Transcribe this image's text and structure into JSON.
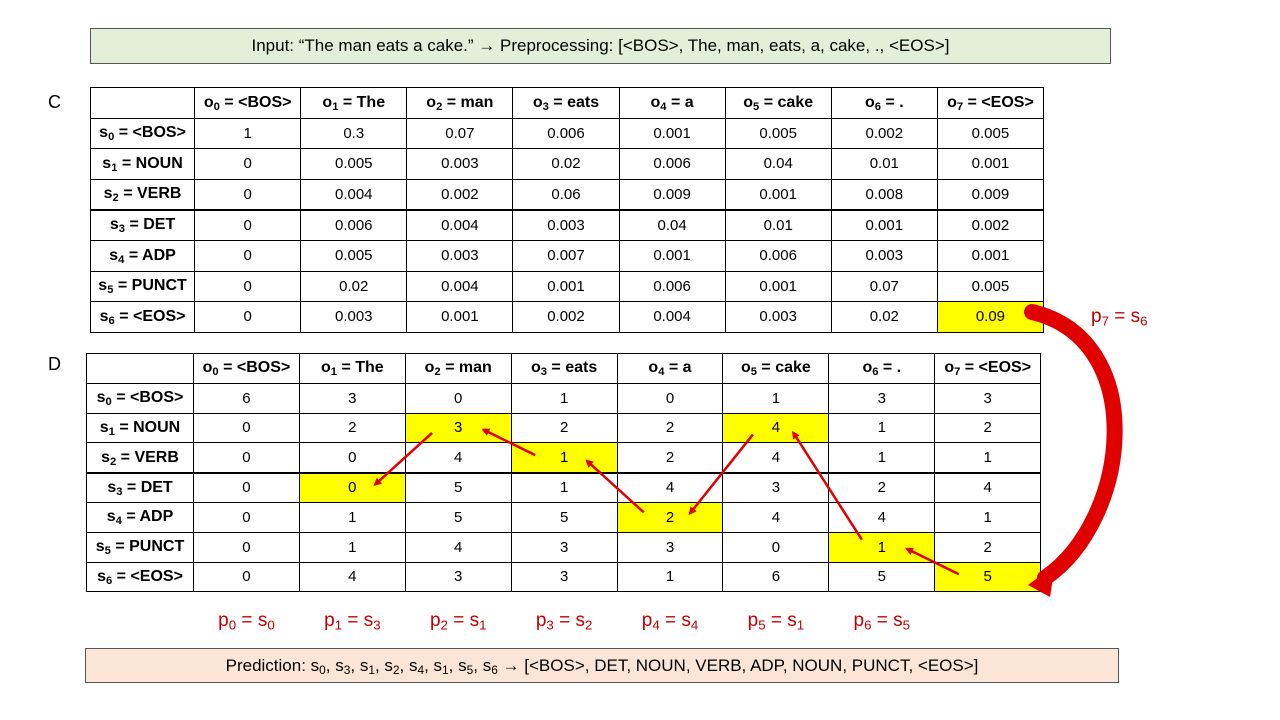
{
  "input_text": "Input: “The man eats a cake.”  →   Preprocessing: [<BOS>, The, man, eats, a, cake, ., <EOS>]",
  "prediction_prefix": "Prediction: ",
  "prediction_states": [
    "s0",
    "s3",
    "s1",
    "s2",
    "s4",
    "s1",
    "s5",
    "s6"
  ],
  "prediction_suffix": " → [<BOS>, DET, NOUN, VERB, ADP, NOUN, PUNCT, <EOS>]",
  "table_c": {
    "label": "C",
    "columns": [
      {
        "sym": "o",
        "sub": "0",
        "text": " = <BOS>"
      },
      {
        "sym": "o",
        "sub": "1",
        "text": " = The"
      },
      {
        "sym": "o",
        "sub": "2",
        "text": " = man"
      },
      {
        "sym": "o",
        "sub": "3",
        "text": " = eats"
      },
      {
        "sym": "o",
        "sub": "4",
        "text": " = a"
      },
      {
        "sym": "o",
        "sub": "5",
        "text": " = cake"
      },
      {
        "sym": "o",
        "sub": "6",
        "text": " = ."
      },
      {
        "sym": "o",
        "sub": "7",
        "text": " = <EOS>"
      }
    ],
    "rows": [
      {
        "sym": "s",
        "sub": "0",
        "text": " = <BOS>",
        "values": [
          "1",
          "0.3",
          "0.07",
          "0.006",
          "0.001",
          "0.005",
          "0.002",
          "0.005"
        ]
      },
      {
        "sym": "s",
        "sub": "1",
        "text": " = NOUN",
        "values": [
          "0",
          "0.005",
          "0.003",
          "0.02",
          "0.006",
          "0.04",
          "0.01",
          "0.001"
        ]
      },
      {
        "sym": "s",
        "sub": "2",
        "text": " = VERB",
        "values": [
          "0",
          "0.004",
          "0.002",
          "0.06",
          "0.009",
          "0.001",
          "0.008",
          "0.009"
        ]
      },
      {
        "sym": "s",
        "sub": "3",
        "text": " = DET",
        "values": [
          "0",
          "0.006",
          "0.004",
          "0.003",
          "0.04",
          "0.01",
          "0.001",
          "0.002"
        ]
      },
      {
        "sym": "s",
        "sub": "4",
        "text": " = ADP",
        "values": [
          "0",
          "0.005",
          "0.003",
          "0.007",
          "0.001",
          "0.006",
          "0.003",
          "0.001"
        ]
      },
      {
        "sym": "s",
        "sub": "5",
        "text": " = PUNCT",
        "values": [
          "0",
          "0.02",
          "0.004",
          "0.001",
          "0.006",
          "0.001",
          "0.07",
          "0.005"
        ]
      },
      {
        "sym": "s",
        "sub": "6",
        "text": " = <EOS>",
        "values": [
          "0",
          "0.003",
          "0.001",
          "0.002",
          "0.004",
          "0.003",
          "0.02",
          "0.09"
        ]
      }
    ],
    "highlights": [
      [
        6,
        7
      ]
    ]
  },
  "table_d": {
    "label": "D",
    "rows": [
      {
        "values": [
          "6",
          "3",
          "0",
          "1",
          "0",
          "1",
          "3",
          "3"
        ]
      },
      {
        "values": [
          "0",
          "2",
          "3",
          "2",
          "2",
          "4",
          "1",
          "2"
        ]
      },
      {
        "values": [
          "0",
          "0",
          "4",
          "1",
          "2",
          "4",
          "1",
          "1"
        ]
      },
      {
        "values": [
          "0",
          "0",
          "5",
          "1",
          "4",
          "3",
          "2",
          "4"
        ]
      },
      {
        "values": [
          "0",
          "1",
          "5",
          "5",
          "2",
          "4",
          "4",
          "1"
        ]
      },
      {
        "values": [
          "0",
          "1",
          "4",
          "3",
          "3",
          "0",
          "1",
          "2"
        ]
      },
      {
        "values": [
          "0",
          "4",
          "3",
          "3",
          "1",
          "6",
          "5",
          "5"
        ]
      }
    ],
    "highlights": [
      [
        3,
        1
      ],
      [
        1,
        2
      ],
      [
        2,
        3
      ],
      [
        4,
        4
      ],
      [
        1,
        5
      ],
      [
        5,
        6
      ],
      [
        6,
        7
      ]
    ]
  },
  "side_label": {
    "sym": "p",
    "sub": "7",
    "eq": " = ",
    "sym2": "s",
    "sub2": "6"
  },
  "path_labels": [
    {
      "sym": "p",
      "sub": "0",
      "sym2": "s",
      "sub2": "0"
    },
    {
      "sym": "p",
      "sub": "1",
      "sym2": "s",
      "sub2": "3"
    },
    {
      "sym": "p",
      "sub": "2",
      "sym2": "s",
      "sub2": "1"
    },
    {
      "sym": "p",
      "sub": "3",
      "sym2": "s",
      "sub2": "2"
    },
    {
      "sym": "p",
      "sub": "4",
      "sym2": "s",
      "sub2": "4"
    },
    {
      "sym": "p",
      "sub": "5",
      "sym2": "s",
      "sub2": "1"
    },
    {
      "sym": "p",
      "sub": "6",
      "sym2": "s",
      "sub2": "5"
    }
  ],
  "colors": {
    "highlight": "#ffff00",
    "arrow": "#e00000",
    "label_red": "#c00000",
    "input_bg": "#e2efd9",
    "prediction_bg": "#fbe5d6"
  }
}
